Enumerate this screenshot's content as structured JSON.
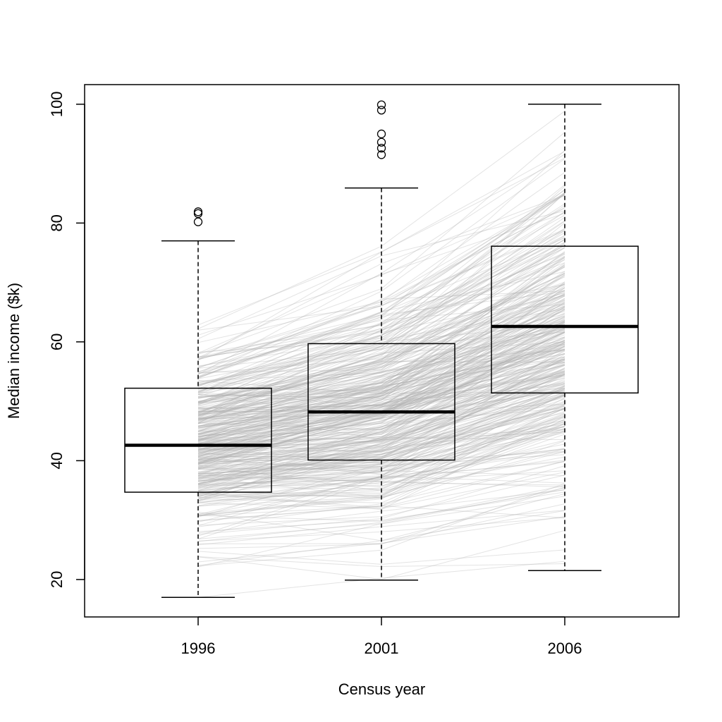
{
  "chart_data": {
    "type": "box",
    "title": "",
    "xlabel": "Census year",
    "ylabel": "Median income ($k)",
    "ylim": [
      13.7,
      103.3
    ],
    "yticks": [
      20,
      40,
      60,
      80,
      100
    ],
    "grid": false,
    "categories": [
      "1996",
      "2001",
      "2006"
    ],
    "boxes": [
      {
        "category": "1996",
        "whisker_low": 17.0,
        "q1": 34.7,
        "median": 42.6,
        "q3": 52.2,
        "whisker_high": 77.0,
        "outliers": [
          80.2,
          81.6,
          81.9
        ]
      },
      {
        "category": "2001",
        "whisker_low": 19.9,
        "q1": 40.1,
        "median": 48.2,
        "q3": 59.7,
        "whisker_high": 85.9,
        "outliers": [
          91.5,
          92.6,
          93.6,
          95.0,
          99.0,
          99.9
        ]
      },
      {
        "category": "2006",
        "whisker_low": 21.5,
        "q1": 51.4,
        "median": 62.6,
        "q3": 76.1,
        "whisker_high": 100.0,
        "outliers": []
      }
    ],
    "trajectories_note": "",
    "trajectory_color": "#b0b0b0"
  }
}
